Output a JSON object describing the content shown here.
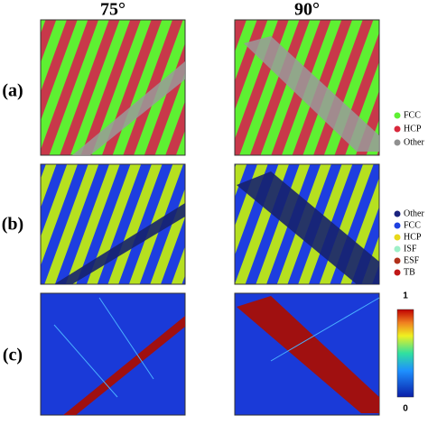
{
  "figure": {
    "column_headers": [
      "75°",
      "90°"
    ],
    "row_labels": [
      "(a)",
      "(b)",
      "(c)"
    ],
    "legend_a": [
      {
        "name": "FCC",
        "color": "#5ef032"
      },
      {
        "name": "HCP",
        "color": "#d8283c"
      },
      {
        "name": "Other",
        "color": "#909090"
      }
    ],
    "legend_b": [
      {
        "name": "Other",
        "color": "#1a237e"
      },
      {
        "name": "FCC",
        "color": "#1e40e0"
      },
      {
        "name": "HCP",
        "color": "#e8d81a"
      },
      {
        "name": "ISF",
        "color": "#9ef0c8"
      },
      {
        "name": "ESF",
        "color": "#b0301a"
      },
      {
        "name": "TB",
        "color": "#c01818"
      }
    ],
    "colorbar": {
      "max": 1,
      "min": 0
    }
  }
}
